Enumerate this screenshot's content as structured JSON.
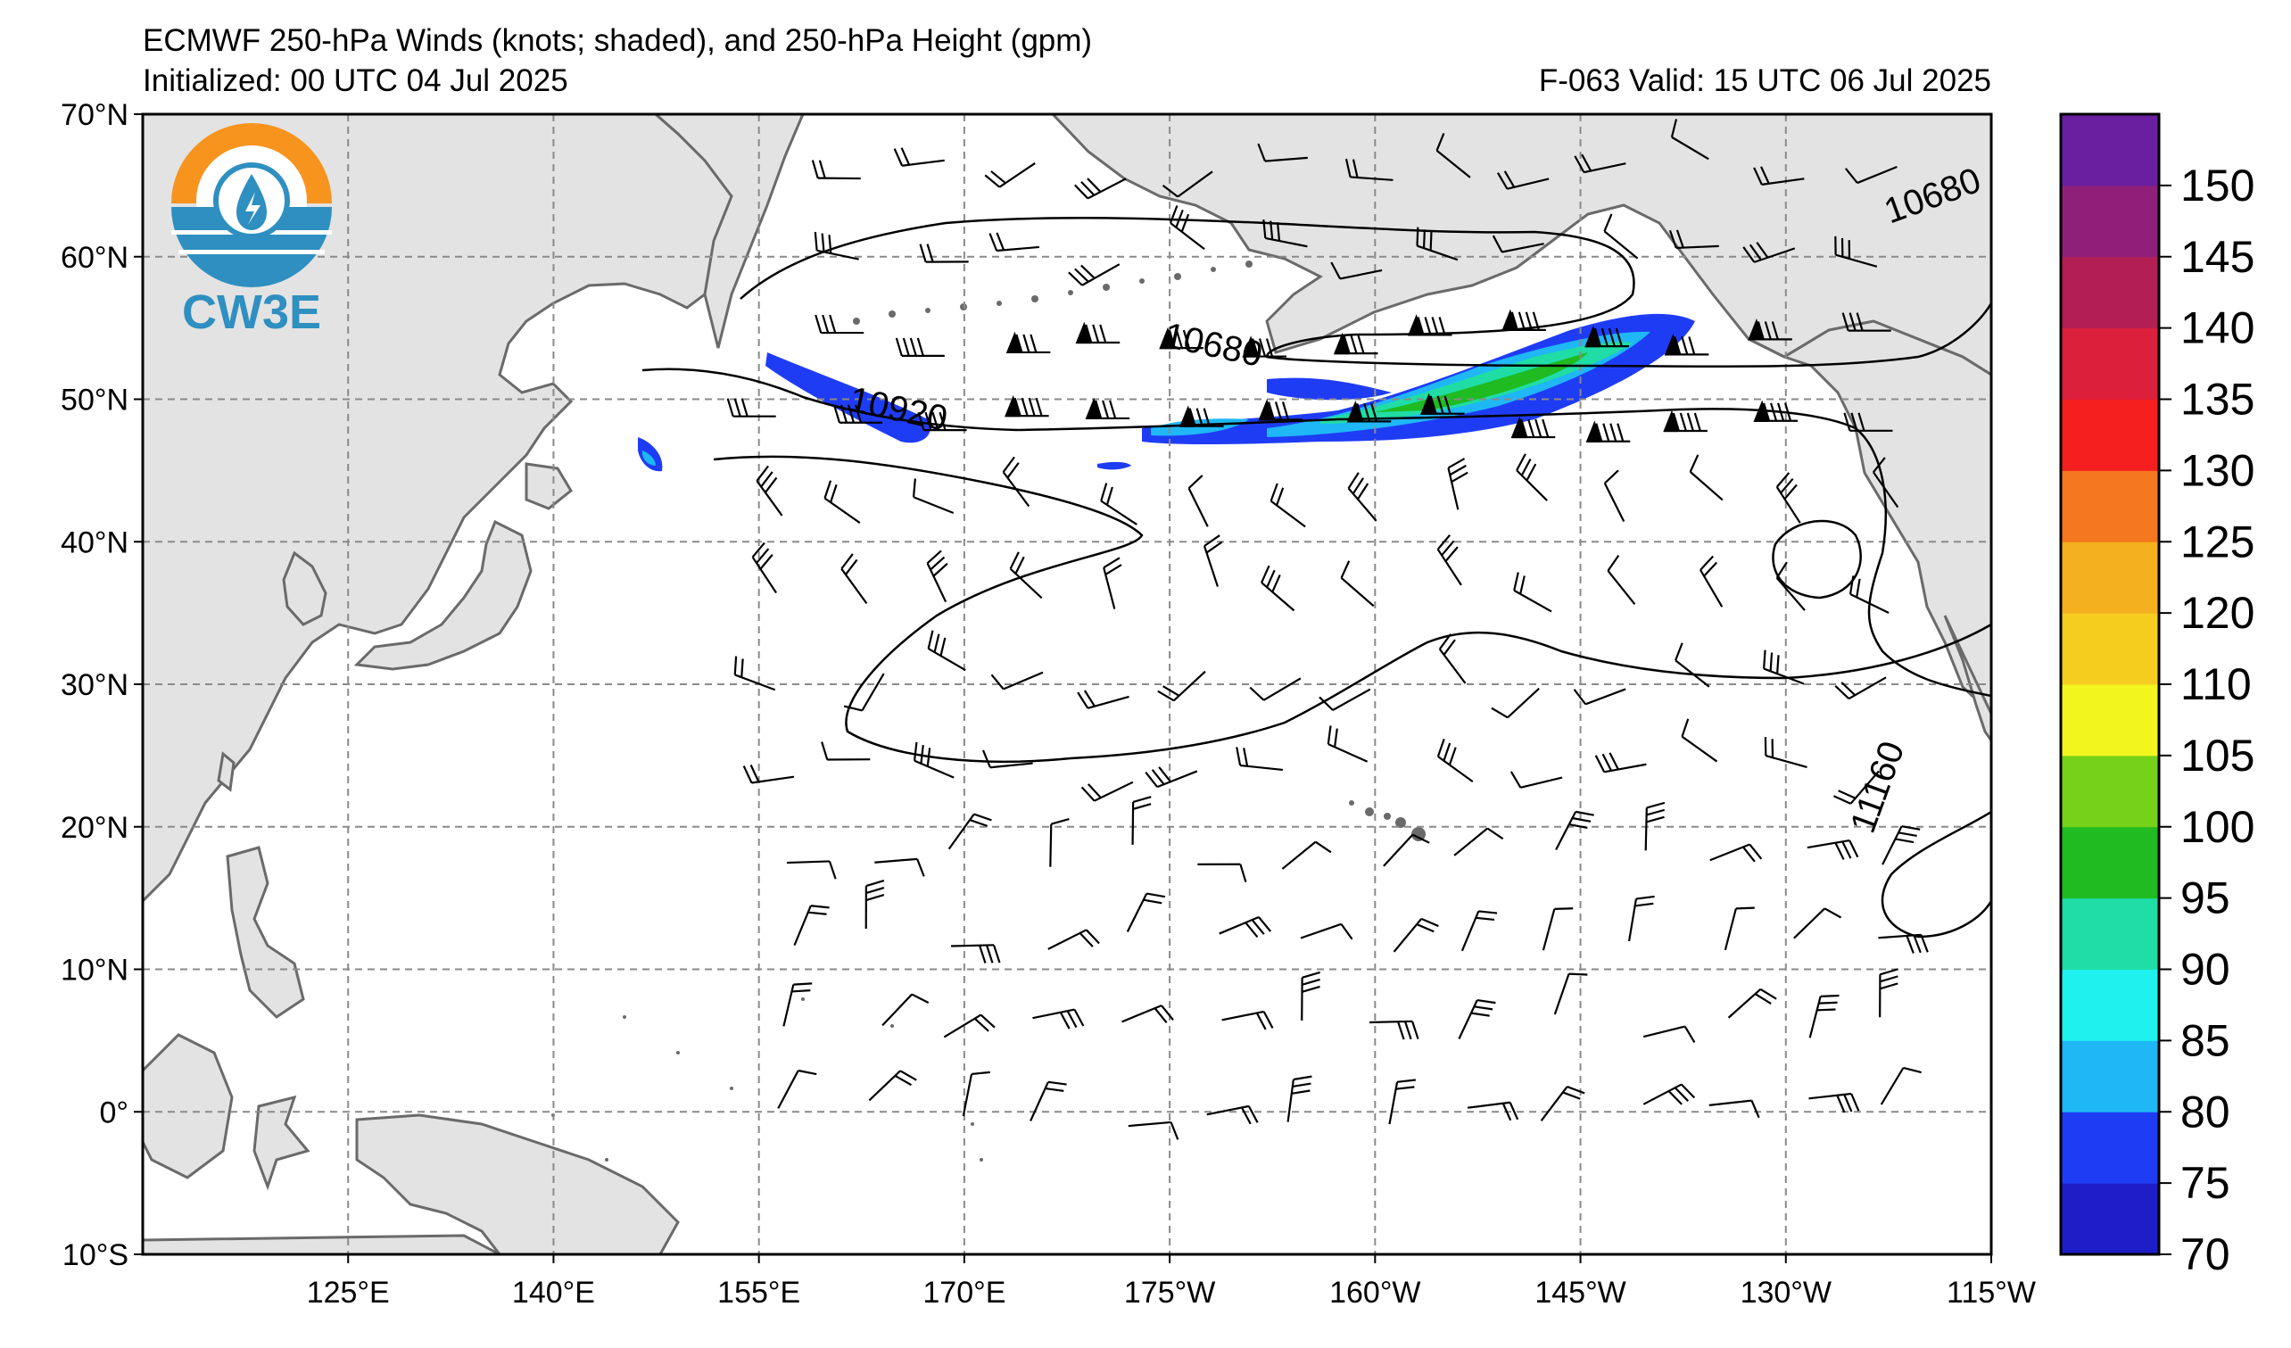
{
  "header": {
    "title": "ECMWF 250-hPa Winds (knots; shaded), and 250-hPa Height (gpm)",
    "initialized": "Initialized: 00 UTC 04 Jul 2025",
    "valid": "F-063  Valid: 15 UTC 06 Jul 2025"
  },
  "logo": {
    "text": "CW3E",
    "colors": {
      "orange": "#F7941D",
      "blue": "#2E8FC0"
    }
  },
  "map": {
    "extent": {
      "lon_west_E": 110,
      "lon_east_E": 245,
      "lat_south": -10,
      "lat_north": 70
    },
    "lat_ticks": [
      {
        "value": 70,
        "label": "70°N"
      },
      {
        "value": 60,
        "label": "60°N"
      },
      {
        "value": 50,
        "label": "50°N"
      },
      {
        "value": 40,
        "label": "40°N"
      },
      {
        "value": 30,
        "label": "30°N"
      },
      {
        "value": 20,
        "label": "20°N"
      },
      {
        "value": 10,
        "label": "10°N"
      },
      {
        "value": 0,
        "label": "0°"
      },
      {
        "value": -10,
        "label": "10°S"
      }
    ],
    "lon_ticks": [
      {
        "value": 125,
        "label": "125°E"
      },
      {
        "value": 140,
        "label": "140°E"
      },
      {
        "value": 155,
        "label": "155°E"
      },
      {
        "value": 170,
        "label": "170°E"
      },
      {
        "value": 185,
        "label": "175°W"
      },
      {
        "value": 200,
        "label": "160°W"
      },
      {
        "value": 215,
        "label": "145°W"
      },
      {
        "value": 230,
        "label": "130°W"
      },
      {
        "value": 245,
        "label": "115°W"
      }
    ],
    "gridlines": true,
    "land_color": "#e3e3e3",
    "coast_color": "#6a6a6a",
    "height_contours": [
      {
        "value": 10680,
        "label": "10680"
      },
      {
        "value": 10920,
        "label": "10920"
      },
      {
        "value": 11160,
        "label": "11160"
      }
    ],
    "contour_labels": [
      {
        "text": "10680",
        "lon": 188,
        "lat": 53
      },
      {
        "text": "10920",
        "lon": 165,
        "lat": 48.5
      },
      {
        "text": "11160",
        "lon": 237.5,
        "lat": 22.5
      },
      {
        "text": "10680",
        "lon": 241,
        "lat": 63.5
      }
    ]
  },
  "colorbar": {
    "ticks": [
      "70",
      "75",
      "80",
      "85",
      "90",
      "95",
      "100",
      "105",
      "110",
      "120",
      "125",
      "130",
      "135",
      "140",
      "145",
      "150"
    ],
    "colors": [
      "#1d1ec8",
      "#1f3cf5",
      "#1fb7f5",
      "#1ff2ee",
      "#1fdda5",
      "#1fbb20",
      "#76d219",
      "#f3f51f",
      "#f5cd1f",
      "#f5b01f",
      "#f5771f",
      "#f51f1f",
      "#dc1f3a",
      "#b31f55",
      "#8f1f79",
      "#6a1fa0"
    ]
  }
}
